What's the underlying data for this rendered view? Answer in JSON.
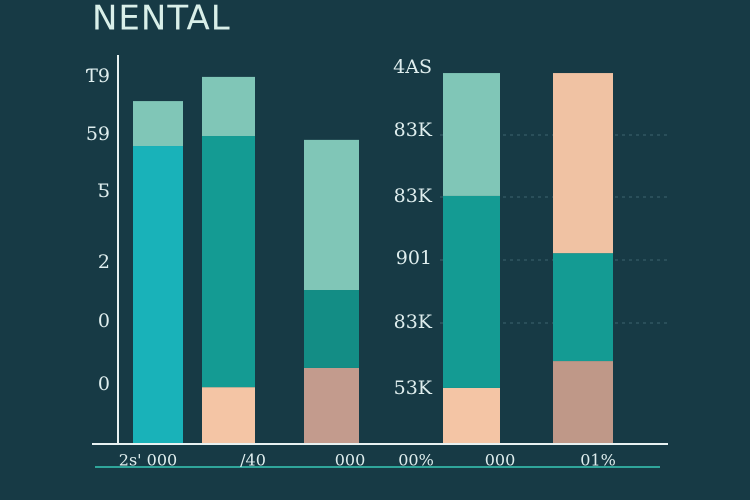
{
  "chart_data": {
    "type": "stacked-bar",
    "title": "NENTAL",
    "left_axis_labels": [
      "Ƭ9",
      "59",
      "Ƽ",
      "2",
      "0",
      "0"
    ],
    "middle_axis_labels": [
      "4AS",
      "83K",
      "83K",
      "901",
      "83K",
      "53K"
    ],
    "x_labels": [
      "2s' 000",
      "/40",
      "000",
      "00%",
      "000",
      "01%"
    ],
    "ylim": [
      0,
      100
    ],
    "series": [
      {
        "colors": [
          "#19b2b9",
          "#f4c5a5",
          "#c39b8d",
          "#f4c5a5",
          "#bf9888"
        ],
        "values": [
          77.6,
          14.8,
          19.8,
          14.6,
          21.6
        ]
      },
      {
        "colors": [
          null,
          "#149b93",
          "#138d85",
          "#149b93",
          "#149b93"
        ],
        "values": [
          null,
          65.4,
          20.3,
          50,
          28.1
        ]
      },
      {
        "colors": [
          "#80c6b7",
          "#80c6b7",
          "#80c6b7",
          "#80c6b7",
          "#f0c2a3"
        ],
        "values": [
          11.7,
          15.4,
          39.1,
          32,
          46.9
        ]
      }
    ]
  }
}
